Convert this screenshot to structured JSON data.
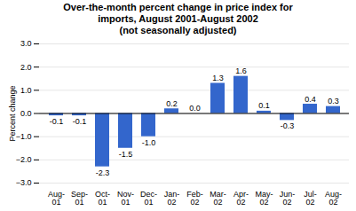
{
  "chart_data": {
    "type": "bar",
    "title": "Over-the-month percent change in price index for\nimports, August 2001-August 2002\n(not seasonally adjusted)",
    "ylabel": "Percent change",
    "categories": [
      "Aug-\n01",
      "Sep-\n01",
      "Oct-\n01",
      "Nov-\n01",
      "Dec-\n01",
      "Jan-\n02",
      "Feb-\n02",
      "Mar-\n02",
      "Apr-\n02",
      "May-\n02",
      "Jun-\n02",
      "Jul-\n02",
      "Aug-\n02"
    ],
    "values": [
      -0.1,
      -0.1,
      -2.3,
      -1.5,
      -1.0,
      0.2,
      0.0,
      1.3,
      1.6,
      0.1,
      -0.3,
      0.4,
      0.3
    ],
    "value_labels": [
      "-0.1",
      "-0.1",
      "-2.3",
      "-1.5",
      "-1.0",
      "0.2",
      "0.0",
      "1.3",
      "1.6",
      "0.1",
      "-0.3",
      "0.4",
      "0.3"
    ],
    "color": "#3366CC",
    "ylim": [
      -3,
      3
    ],
    "yticks": [
      -3,
      -2,
      -1,
      0,
      1,
      2,
      3
    ],
    "grid": true,
    "data_labels": true
  }
}
